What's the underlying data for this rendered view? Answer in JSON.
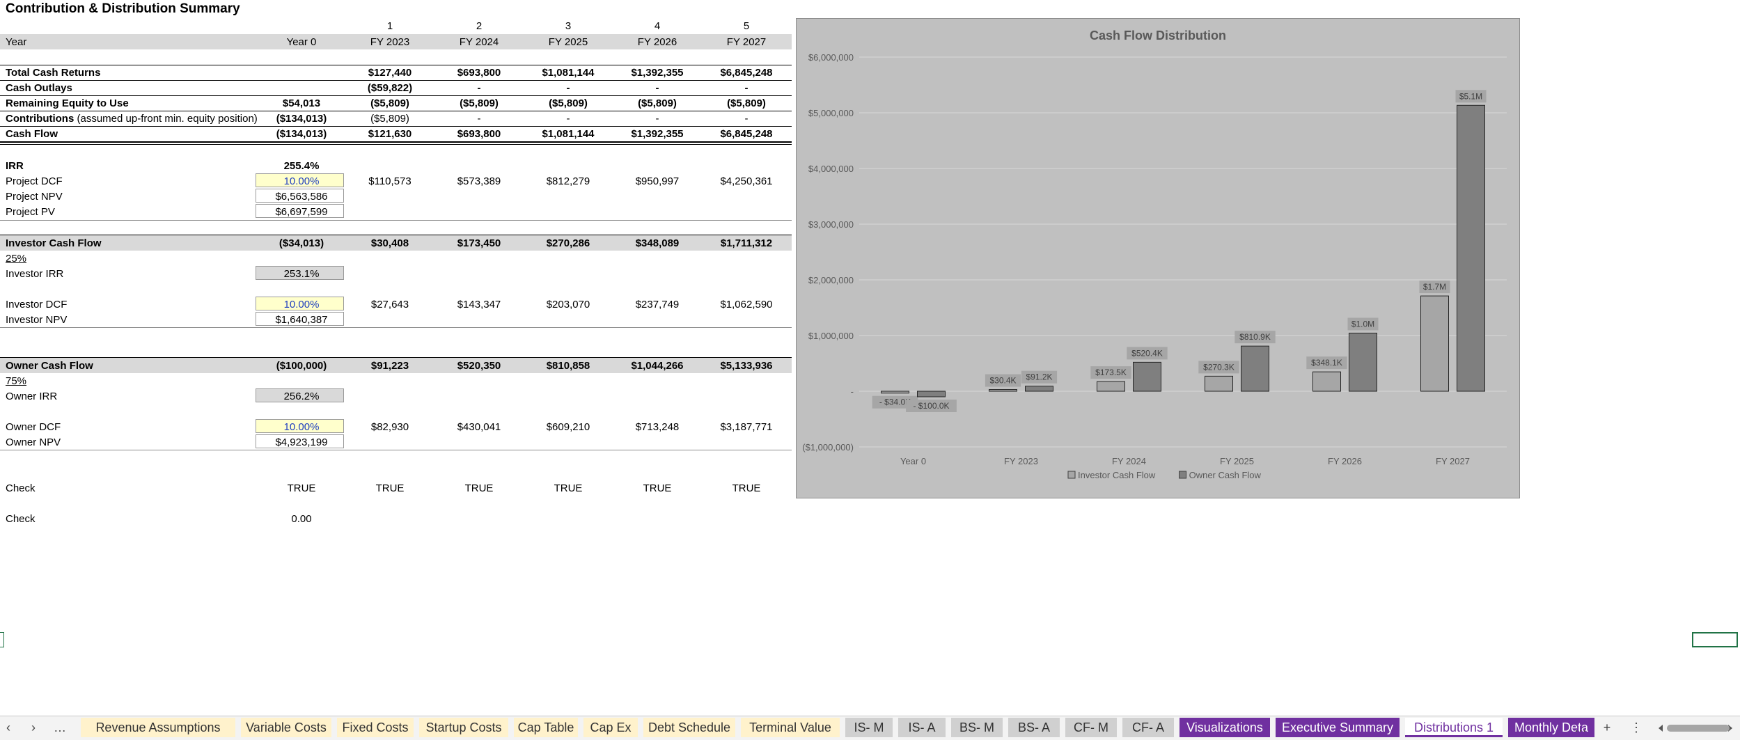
{
  "sheet": {
    "title": "Contribution & Distribution Summary",
    "period_numbers": [
      "1",
      "2",
      "3",
      "4",
      "5"
    ],
    "year_row": {
      "label": "Year",
      "values": [
        "Year 0",
        "FY 2023",
        "FY 2024",
        "FY 2025",
        "FY 2026",
        "FY 2027"
      ]
    },
    "total_cash_returns": {
      "label": "Total Cash Returns",
      "values": [
        "",
        "$127,440",
        "$693,800",
        "$1,081,144",
        "$1,392,355",
        "$6,845,248"
      ]
    },
    "cash_outlays": {
      "label": "Cash Outlays",
      "values": [
        "",
        "($59,822)",
        "-",
        "-",
        "-",
        "-"
      ]
    },
    "remaining_equity": {
      "label": "Remaining Equity to Use",
      "values": [
        "$54,013",
        "($5,809)",
        "($5,809)",
        "($5,809)",
        "($5,809)",
        "($5,809)"
      ]
    },
    "contributions": {
      "label": "Contributions",
      "label_note": "(assumed up-front min. equity position)",
      "values": [
        "($134,013)",
        "($5,809)",
        "-",
        "-",
        "-",
        "-"
      ]
    },
    "cash_flow": {
      "label": "Cash Flow",
      "values": [
        "($134,013)",
        "$121,630",
        "$693,800",
        "$1,081,144",
        "$1,392,355",
        "$6,845,248"
      ]
    },
    "irr": {
      "label": "IRR",
      "value": "255.4%"
    },
    "project_dcf": {
      "label": "Project DCF",
      "rate": "10.00%",
      "values": [
        "$110,573",
        "$573,389",
        "$812,279",
        "$950,997",
        "$4,250,361"
      ]
    },
    "project_npv": {
      "label": "Project NPV",
      "value": "$6,563,586"
    },
    "project_pv": {
      "label": "Project PV",
      "value": "$6,697,599"
    },
    "investor_cash_flow": {
      "label": "Investor Cash Flow",
      "values": [
        "($34,013)",
        "$30,408",
        "$173,450",
        "$270,286",
        "$348,089",
        "$1,711,312"
      ]
    },
    "investor_share": "25%",
    "investor_irr": {
      "label": "Investor IRR",
      "value": "253.1%"
    },
    "investor_dcf": {
      "label": "Investor DCF",
      "rate": "10.00%",
      "values": [
        "$27,643",
        "$143,347",
        "$203,070",
        "$237,749",
        "$1,062,590"
      ]
    },
    "investor_npv": {
      "label": "Investor NPV",
      "value": "$1,640,387"
    },
    "owner_cash_flow": {
      "label": "Owner Cash Flow",
      "values": [
        "($100,000)",
        "$91,223",
        "$520,350",
        "$810,858",
        "$1,044,266",
        "$5,133,936"
      ]
    },
    "owner_share": "75%",
    "owner_irr": {
      "label": "Owner IRR",
      "value": "256.2%"
    },
    "owner_dcf": {
      "label": "Owner DCF",
      "rate": "10.00%",
      "values": [
        "$82,930",
        "$430,041",
        "$609,210",
        "$713,248",
        "$3,187,771"
      ]
    },
    "owner_npv": {
      "label": "Owner NPV",
      "value": "$4,923,199"
    },
    "check1": {
      "label": "Check",
      "values": [
        "TRUE",
        "TRUE",
        "TRUE",
        "TRUE",
        "TRUE",
        "TRUE"
      ]
    },
    "check2": {
      "label": "Check",
      "value": "0.00"
    }
  },
  "chart_data": {
    "type": "bar",
    "title": "Cash Flow Distribution",
    "categories": [
      "Year 0",
      "FY 2023",
      "FY 2024",
      "FY 2025",
      "FY 2026",
      "FY 2027"
    ],
    "series": [
      {
        "name": "Investor Cash Flow",
        "values": [
          -34013,
          30408,
          173450,
          270286,
          348089,
          1711312
        ],
        "labels": [
          "- $34.0K",
          "$30.4K",
          "$173.5K",
          "$270.3K",
          "$348.1K",
          "$1.7M"
        ],
        "color": "#a6a6a6"
      },
      {
        "name": "Owner Cash Flow",
        "values": [
          -100000,
          91223,
          520350,
          810858,
          1044266,
          5133936
        ],
        "labels": [
          "- $100.0K",
          "$91.2K",
          "$520.4K",
          "$810.9K",
          "$1.0M",
          "$5.1M"
        ],
        "color": "#7f7f7f"
      }
    ],
    "ylim": [
      -1000000,
      6000000
    ],
    "yticks": [
      -1000000,
      0,
      1000000,
      2000000,
      3000000,
      4000000,
      5000000,
      6000000
    ],
    "ytick_labels": [
      "($1,000,000)",
      "-",
      "$1,000,000",
      "$2,000,000",
      "$3,000,000",
      "$4,000,000",
      "$5,000,000",
      "$6,000,000"
    ],
    "grid": true,
    "legend": "bottom",
    "background": "#c0c0c0"
  },
  "tabs": [
    {
      "label": "Revenue Assumptions",
      "style": "yellow"
    },
    {
      "label": "Variable Costs",
      "style": "yellow"
    },
    {
      "label": "Fixed Costs",
      "style": "yellow"
    },
    {
      "label": "Startup Costs",
      "style": "yellow"
    },
    {
      "label": "Cap Table",
      "style": "yellow"
    },
    {
      "label": "Cap Ex",
      "style": "yellow"
    },
    {
      "label": "Debt Schedule",
      "style": "yellow"
    },
    {
      "label": "Terminal Value",
      "style": "yellow"
    },
    {
      "label": "IS- M",
      "style": "gray"
    },
    {
      "label": "IS- A",
      "style": "gray"
    },
    {
      "label": "BS- M",
      "style": "gray"
    },
    {
      "label": "BS- A",
      "style": "gray"
    },
    {
      "label": "CF- M",
      "style": "gray"
    },
    {
      "label": "CF- A",
      "style": "gray"
    },
    {
      "label": "Visualizations",
      "style": "purple"
    },
    {
      "label": "Executive Summary",
      "style": "purple"
    },
    {
      "label": "Distributions 1",
      "style": "active"
    },
    {
      "label": "Monthly Deta",
      "style": "purple"
    }
  ],
  "tabbar_icons": {
    "prev": "‹",
    "next": "›",
    "more_left": "…",
    "more_right": "…",
    "add": "+",
    "options": "⋮"
  }
}
